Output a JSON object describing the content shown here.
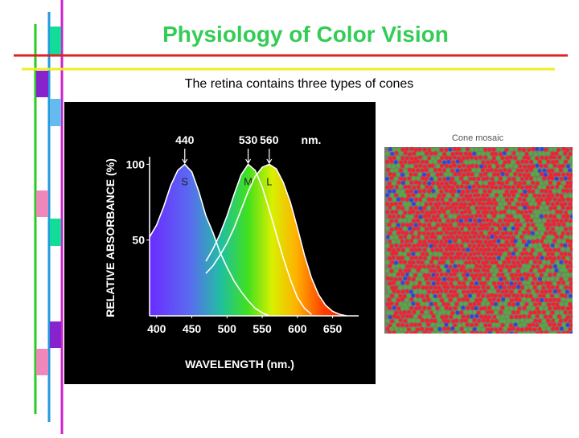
{
  "title": "Physiology of Color Vision",
  "subtitle": "The retina contains three types of cones",
  "mosaic_title": "Cone mosaic",
  "chart_data": {
    "type": "line",
    "x_label": "WAVELENGTH (nm.)",
    "y_label": "RELATIVE ABSORBANCE (%)",
    "peak_labels": [
      440,
      530,
      560
    ],
    "peak_unit": "nm.",
    "x": [
      390,
      400,
      410,
      420,
      430,
      440,
      450,
      460,
      470,
      480,
      490,
      500,
      510,
      520,
      530,
      540,
      550,
      560,
      570,
      580,
      590,
      600,
      610,
      620,
      630,
      640,
      650,
      660,
      670,
      680
    ],
    "series": [
      {
        "name": "S",
        "color": "#ffffff",
        "values": [
          52,
          60,
          72,
          86,
          96,
          100,
          95,
          82,
          66,
          55,
          42,
          32,
          23,
          16,
          10,
          5,
          2,
          0,
          null,
          null,
          null,
          null,
          null,
          null,
          null,
          null,
          null,
          null,
          null,
          null
        ]
      },
      {
        "name": "M",
        "color": "#ffffff",
        "values": [
          null,
          null,
          null,
          null,
          null,
          null,
          null,
          null,
          36,
          44,
          54,
          66,
          80,
          93,
          100,
          96,
          85,
          70,
          54,
          38,
          24,
          12,
          5,
          1,
          null,
          null,
          null,
          null,
          null,
          null
        ]
      },
      {
        "name": "L",
        "color": "#ffffff",
        "values": [
          null,
          null,
          null,
          null,
          null,
          null,
          null,
          null,
          28,
          33,
          40,
          48,
          58,
          70,
          82,
          92,
          98,
          100,
          97,
          88,
          75,
          58,
          40,
          25,
          14,
          7,
          3,
          1,
          0,
          null
        ]
      }
    ],
    "xlim": [
      390,
      687
    ],
    "ylim": [
      0,
      105
    ],
    "xticks": [
      400,
      450,
      500,
      550,
      600,
      650
    ],
    "yticks": [
      50,
      100
    ]
  }
}
